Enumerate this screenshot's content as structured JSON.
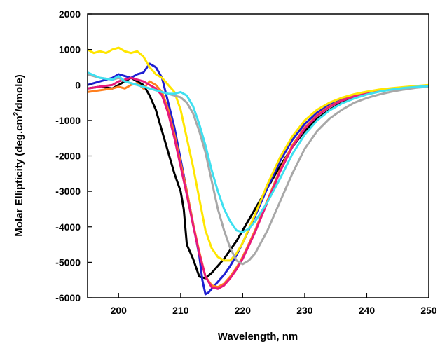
{
  "chart_data": {
    "type": "line",
    "title": "",
    "xlabel": "Wavelength, nm",
    "ylabel_parts": [
      "Molar Ellipticity (deg.cm",
      "2",
      "/dmole)"
    ],
    "xlim": [
      195,
      250
    ],
    "ylim": [
      -6000,
      2000
    ],
    "x_ticks": [
      200,
      210,
      220,
      230,
      240,
      250
    ],
    "y_ticks": [
      2000,
      1000,
      0,
      -1000,
      -2000,
      -3000,
      -4000,
      -5000,
      -6000
    ],
    "grid": false,
    "series": [
      {
        "color": "#000000",
        "x": [
          195,
          197,
          199,
          200,
          201,
          202,
          203,
          204,
          205,
          206,
          207,
          208,
          209,
          210,
          210.5,
          211,
          212,
          213,
          214,
          215,
          216,
          217,
          218,
          219,
          220,
          222,
          224,
          226,
          228,
          230,
          232,
          234,
          236,
          238,
          240,
          242,
          244,
          246,
          248,
          250
        ],
        "y": [
          -100,
          -50,
          -100,
          0,
          100,
          200,
          100,
          0,
          -300,
          -700,
          -1300,
          -1900,
          -2500,
          -3000,
          -3500,
          -4500,
          -4900,
          -5400,
          -5450,
          -5300,
          -5100,
          -4900,
          -4650,
          -4400,
          -4100,
          -3500,
          -2900,
          -2300,
          -1750,
          -1300,
          -950,
          -700,
          -500,
          -350,
          -250,
          -180,
          -120,
          -80,
          -50,
          -30
        ]
      },
      {
        "color": "#1f1fd2",
        "x": [
          195,
          197,
          199,
          200,
          201,
          202,
          203,
          204,
          205,
          206,
          207,
          208,
          209,
          210,
          211,
          212,
          213,
          213.5,
          214,
          214.5,
          215,
          216,
          217,
          218,
          219,
          220,
          222,
          224,
          226,
          228,
          230,
          232,
          234,
          236,
          238,
          240,
          242,
          244,
          246,
          248,
          250
        ],
        "y": [
          0,
          100,
          200,
          300,
          250,
          200,
          300,
          350,
          600,
          500,
          200,
          -500,
          -1200,
          -2100,
          -3000,
          -3900,
          -4800,
          -5500,
          -5900,
          -5850,
          -5750,
          -5550,
          -5350,
          -5100,
          -4800,
          -4450,
          -3700,
          -2900,
          -2150,
          -1550,
          -1100,
          -780,
          -560,
          -400,
          -290,
          -210,
          -150,
          -100,
          -70,
          -40,
          -20
        ]
      },
      {
        "color": "#ff7f1e",
        "x": [
          195,
          197,
          199,
          200,
          201,
          202,
          203,
          204,
          205,
          206,
          207,
          208,
          209,
          210,
          211,
          212,
          213,
          214,
          215,
          216,
          217,
          218,
          219,
          220,
          222,
          224,
          226,
          228,
          230,
          232,
          234,
          236,
          238,
          240,
          242,
          244,
          246,
          248,
          250
        ],
        "y": [
          -200,
          -150,
          -100,
          -50,
          -100,
          0,
          50,
          -100,
          100,
          0,
          -200,
          -700,
          -1400,
          -2200,
          -3000,
          -3900,
          -4700,
          -5400,
          -5650,
          -5700,
          -5600,
          -5400,
          -5150,
          -4850,
          -4100,
          -3250,
          -2400,
          -1700,
          -1200,
          -850,
          -600,
          -430,
          -310,
          -220,
          -160,
          -110,
          -75,
          -45,
          -25
        ]
      },
      {
        "color": "#e8197a",
        "x": [
          195,
          197,
          199,
          200,
          201,
          202,
          203,
          204,
          205,
          206,
          207,
          208,
          209,
          210,
          211,
          212,
          213,
          214,
          215,
          216,
          217,
          218,
          219,
          220,
          222,
          224,
          226,
          228,
          230,
          232,
          234,
          236,
          238,
          240,
          242,
          244,
          246,
          248,
          250
        ],
        "y": [
          -100,
          -50,
          0,
          100,
          150,
          200,
          150,
          100,
          0,
          -100,
          -300,
          -800,
          -1500,
          -2300,
          -3100,
          -3950,
          -4750,
          -5400,
          -5700,
          -5750,
          -5650,
          -5450,
          -5200,
          -4900,
          -4150,
          -3300,
          -2450,
          -1750,
          -1230,
          -870,
          -620,
          -440,
          -320,
          -230,
          -160,
          -110,
          -75,
          -45,
          -25
        ]
      },
      {
        "color": "#ffe600",
        "x": [
          195,
          196,
          197,
          198,
          199,
          200,
          201,
          202,
          203,
          204,
          205,
          206,
          207,
          208,
          209,
          210,
          211,
          212,
          213,
          214,
          215,
          216,
          217,
          218,
          219,
          220,
          222,
          224,
          226,
          228,
          230,
          232,
          234,
          236,
          238,
          240,
          242,
          244,
          246,
          248,
          250
        ],
        "y": [
          1000,
          900,
          950,
          900,
          1000,
          1050,
          950,
          900,
          950,
          800,
          500,
          300,
          200,
          0,
          -200,
          -700,
          -1500,
          -2300,
          -3200,
          -4100,
          -4600,
          -4850,
          -4950,
          -4950,
          -4750,
          -4450,
          -3650,
          -2800,
          -2050,
          -1450,
          -1000,
          -700,
          -500,
          -360,
          -260,
          -190,
          -130,
          -90,
          -60,
          -30,
          0
        ]
      },
      {
        "color": "#a8a8a8",
        "x": [
          195,
          197,
          199,
          200,
          201,
          202,
          203,
          204,
          205,
          206,
          207,
          208,
          209,
          210,
          211,
          212,
          213,
          214,
          215,
          216,
          217,
          218,
          219,
          220,
          221,
          222,
          224,
          226,
          228,
          230,
          232,
          234,
          236,
          238,
          240,
          242,
          244,
          246,
          248,
          250
        ],
        "y": [
          300,
          200,
          150,
          200,
          100,
          50,
          0,
          -50,
          -100,
          -150,
          -200,
          -250,
          -300,
          -350,
          -500,
          -800,
          -1300,
          -1900,
          -2700,
          -3500,
          -4100,
          -4600,
          -4950,
          -5050,
          -4950,
          -4750,
          -4100,
          -3300,
          -2500,
          -1800,
          -1300,
          -950,
          -700,
          -500,
          -370,
          -270,
          -190,
          -130,
          -80,
          -50
        ]
      },
      {
        "color": "#3fe0f0",
        "x": [
          195,
          197,
          199,
          200,
          201,
          202,
          203,
          204,
          205,
          206,
          207,
          208,
          209,
          210,
          211,
          212,
          213,
          214,
          215,
          216,
          217,
          218,
          219,
          220,
          221,
          222,
          224,
          226,
          228,
          230,
          232,
          234,
          236,
          238,
          240,
          242,
          244,
          246,
          248,
          250
        ],
        "y": [
          350,
          200,
          150,
          250,
          100,
          50,
          0,
          -50,
          -100,
          -150,
          -200,
          -250,
          -250,
          -200,
          -300,
          -600,
          -1100,
          -1700,
          -2400,
          -3000,
          -3500,
          -3850,
          -4100,
          -4150,
          -4050,
          -3850,
          -3300,
          -2650,
          -1950,
          -1400,
          -1000,
          -720,
          -520,
          -380,
          -270,
          -190,
          -130,
          -85,
          -55,
          -30
        ]
      }
    ]
  }
}
